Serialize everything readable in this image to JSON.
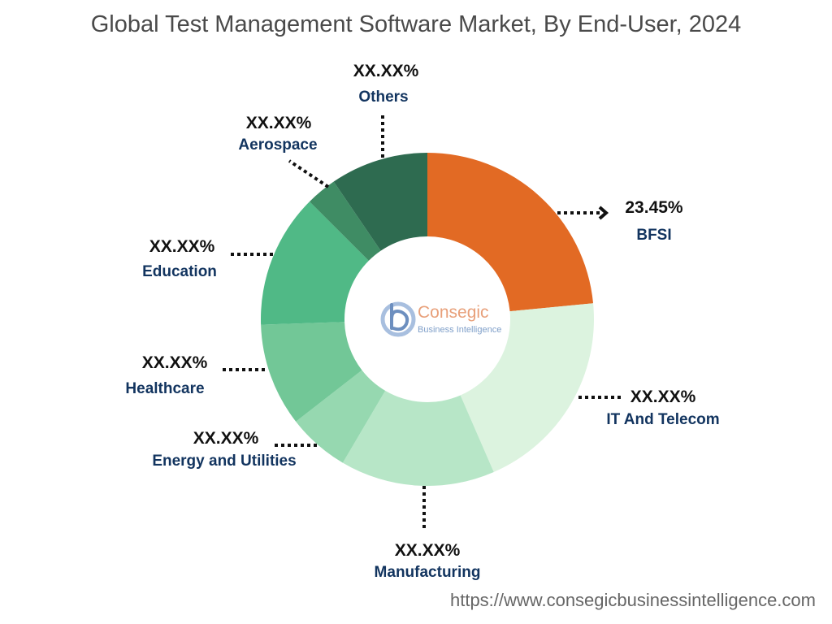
{
  "chart_data": {
    "type": "pie",
    "title": "Global Test Management Software Market, By End-User, 2024",
    "slices": [
      {
        "name": "BFSI",
        "value": 23.45,
        "value_label": "23.45%",
        "color": "#e26a24"
      },
      {
        "name": "IT And Telecom",
        "value": 20.0,
        "value_label": "XX.XX%",
        "color": "#dcf3df"
      },
      {
        "name": "Manufacturing",
        "value": 15.0,
        "value_label": "XX.XX%",
        "color": "#b7e6c7"
      },
      {
        "name": "Energy and Utilities",
        "value": 6.0,
        "value_label": "XX.XX%",
        "color": "#96d8b0"
      },
      {
        "name": "Healthcare",
        "value": 10.0,
        "value_label": "XX.XX%",
        "color": "#72c797"
      },
      {
        "name": "Education",
        "value": 13.0,
        "value_label": "XX.XX%",
        "color": "#50b986"
      },
      {
        "name": "Aerospace",
        "value": 3.0,
        "value_label": "XX.XX%",
        "color": "#3f8c64"
      },
      {
        "name": "Others",
        "value": 9.5,
        "value_label": "XX.XX%",
        "color": "#2e6b50"
      }
    ],
    "label_colors": {
      "highlight": "#e26a24",
      "default": "#12345f"
    }
  },
  "logo": {
    "name": "Consegic",
    "subtitle": "Business Intelligence"
  },
  "source": "https://www.consegicbusinessintelligence.com"
}
